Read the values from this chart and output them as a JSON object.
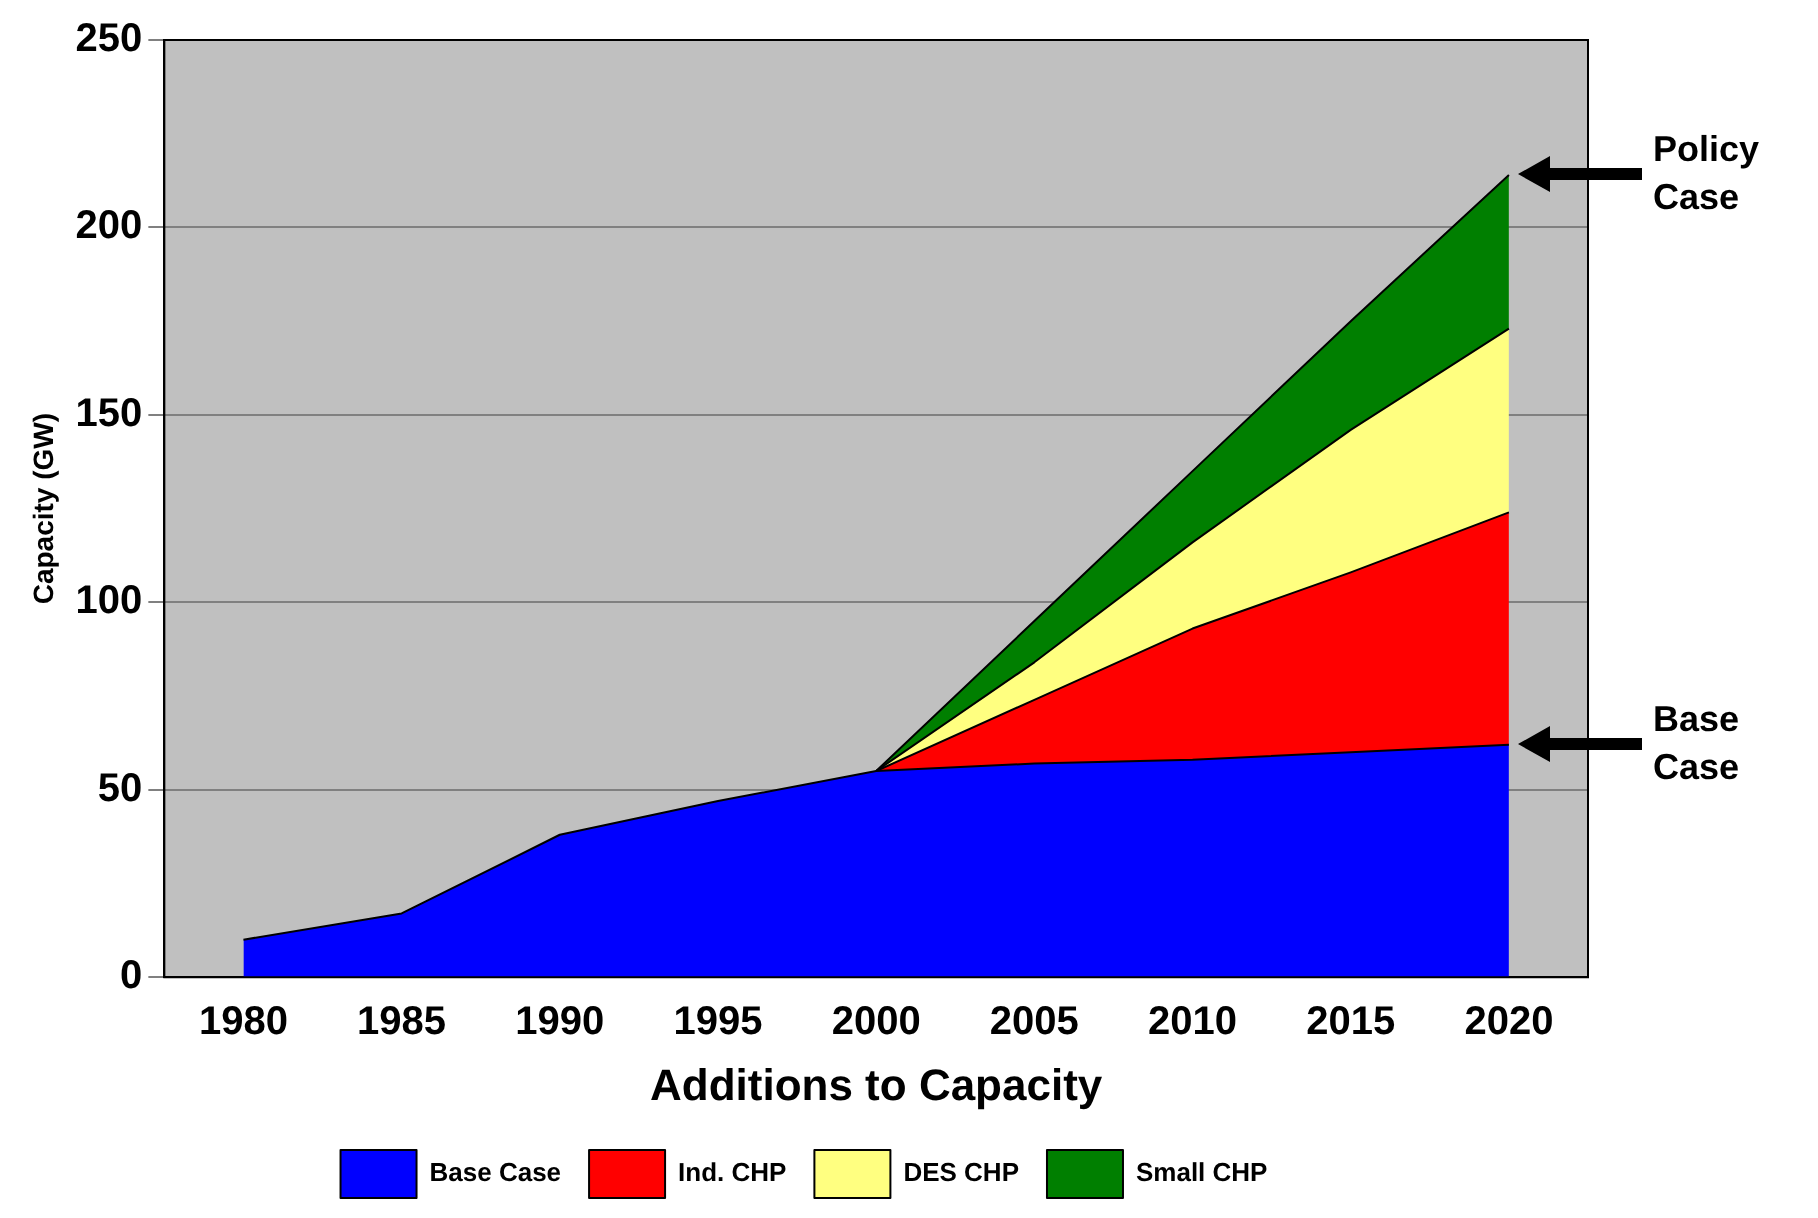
{
  "chart_data": {
    "type": "area",
    "stacked": true,
    "xlabel": "Additions to Capacity",
    "ylabel": "Capacity (GW)",
    "categories": [
      "1980",
      "1985",
      "1990",
      "1995",
      "2000",
      "2005",
      "2010",
      "2015",
      "2020"
    ],
    "series": [
      {
        "name": "Base Case",
        "color": "#0000ff",
        "values": [
          10,
          17,
          38,
          47,
          55,
          57,
          58,
          60,
          62
        ]
      },
      {
        "name": "Ind. CHP",
        "color": "#ff0000",
        "values": [
          null,
          null,
          null,
          null,
          0,
          17,
          35,
          48,
          62
        ]
      },
      {
        "name": "DES CHP",
        "color": "#ffff80",
        "values": [
          null,
          null,
          null,
          null,
          0,
          10,
          23,
          38,
          49
        ]
      },
      {
        "name": "Small CHP",
        "color": "#007f00",
        "values": [
          null,
          null,
          null,
          null,
          0,
          11,
          19,
          29,
          41
        ]
      }
    ],
    "ylim": [
      0,
      250
    ],
    "yticks": [
      0,
      50,
      100,
      150,
      200,
      250
    ],
    "grid": "y",
    "legend": "bottom",
    "annotations": [
      "Policy Case",
      "Base Case"
    ]
  }
}
